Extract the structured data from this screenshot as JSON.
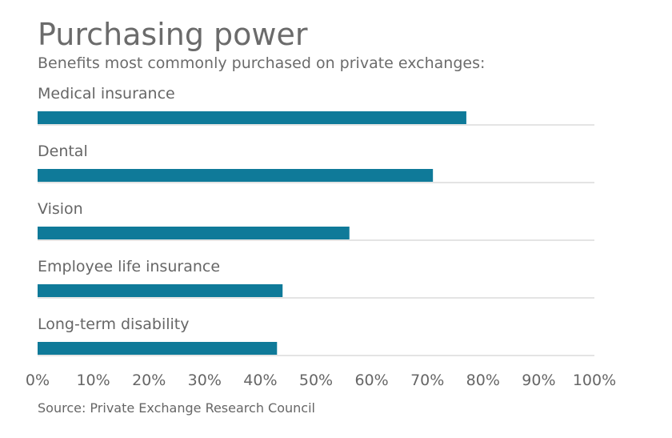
{
  "chart_data": {
    "type": "bar",
    "orientation": "horizontal",
    "title": "Purchasing power",
    "subtitle": "Benefits most commonly purchased on private exchanges:",
    "categories": [
      "Medical insurance",
      "Dental",
      "Vision",
      "Employee life insurance",
      "Long-term disability"
    ],
    "values": [
      77,
      71,
      56,
      44,
      43
    ],
    "xlabel": "",
    "ylabel": "",
    "xlim": [
      0,
      100
    ],
    "x_ticks": [
      0,
      10,
      20,
      30,
      40,
      50,
      60,
      70,
      80,
      90,
      100
    ],
    "x_tick_labels": [
      "0%",
      "10%",
      "20%",
      "30%",
      "40%",
      "50%",
      "60%",
      "70%",
      "80%",
      "90%",
      "100%"
    ],
    "grid": false,
    "legend": "none",
    "source": "Source: Private Exchange Research Council",
    "colors": {
      "bar": "#0f7a99",
      "baseline": "#c8c8c8",
      "text": "#666666"
    }
  }
}
